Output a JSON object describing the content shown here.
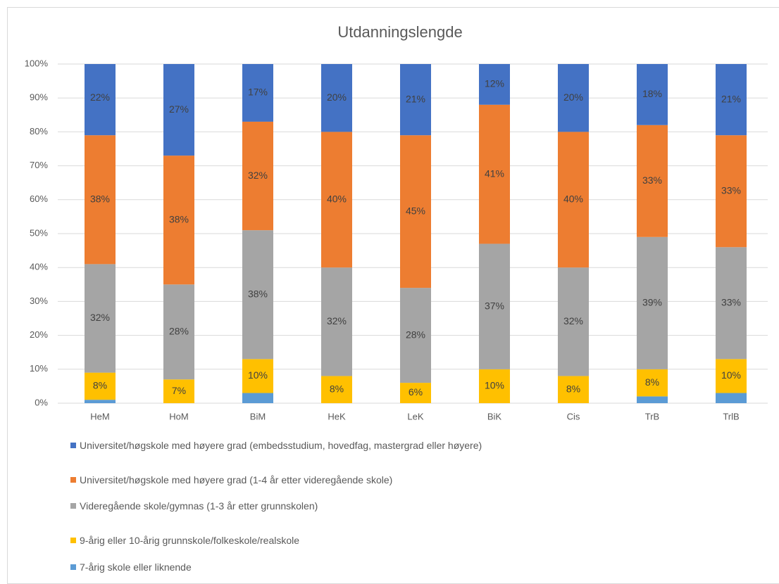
{
  "chart_data": {
    "type": "stacked_bar",
    "title": "Utdanningslengde",
    "categories": [
      "HeM",
      "HoM",
      "BiM",
      "HeK",
      "LeK",
      "BiK",
      "Cis",
      "TrB",
      "TrlB"
    ],
    "ylim": [
      0,
      100
    ],
    "yticks": [
      {
        "value": 0,
        "label": "0%"
      },
      {
        "value": 10,
        "label": "10%"
      },
      {
        "value": 20,
        "label": "20%"
      },
      {
        "value": 30,
        "label": "30%"
      },
      {
        "value": 40,
        "label": "40%"
      },
      {
        "value": 50,
        "label": "50%"
      },
      {
        "value": 60,
        "label": "60%"
      },
      {
        "value": 70,
        "label": "70%"
      },
      {
        "value": 80,
        "label": "80%"
      },
      {
        "value": 90,
        "label": "90%"
      },
      {
        "value": 100,
        "label": "100%"
      }
    ],
    "grid": true,
    "legend": "bottom",
    "series": [
      {
        "name": "7-årig skole eller liknende",
        "color": "#5b9bd5",
        "values": [
          1,
          0,
          3,
          0,
          0,
          0,
          0,
          2,
          3
        ]
      },
      {
        "name": "9-årig eller 10-årig grunnskole/folkeskole/realskole",
        "color": "#ffc000",
        "values": [
          8,
          7,
          10,
          8,
          6,
          10,
          8,
          8,
          10
        ],
        "value_labels": [
          "8%",
          "7%",
          "10%",
          "8%",
          "6%",
          "10%",
          "8%",
          "8%",
          "10%"
        ]
      },
      {
        "name": "Videregående skole/gymnas (1-3 år etter grunnskolen)",
        "color": "#a5a5a5",
        "values": [
          32,
          28,
          38,
          32,
          28,
          37,
          32,
          39,
          33
        ],
        "value_labels": [
          "32%",
          "28%",
          "38%",
          "32%",
          "28%",
          "37%",
          "32%",
          "39%",
          "33%"
        ]
      },
      {
        "name": "Universitet/høgskole med høyere grad (1-4 år etter videregående skole)",
        "color": "#ed7d31",
        "values": [
          38,
          38,
          32,
          40,
          45,
          41,
          40,
          33,
          33
        ],
        "value_labels": [
          "38%",
          "38%",
          "32%",
          "40%",
          "45%",
          "41%",
          "40%",
          "33%",
          "33%"
        ]
      },
      {
        "name": "Universitet/høgskole med høyere grad (embedsstudium, hovedfag, mastergrad eller høyere)",
        "color": "#4472c4",
        "values": [
          22,
          27,
          17,
          20,
          21,
          12,
          20,
          18,
          21
        ],
        "value_labels": [
          "22%",
          "27%",
          "17%",
          "20%",
          "21%",
          "12%",
          "20%",
          "18%",
          "21%"
        ]
      }
    ]
  }
}
